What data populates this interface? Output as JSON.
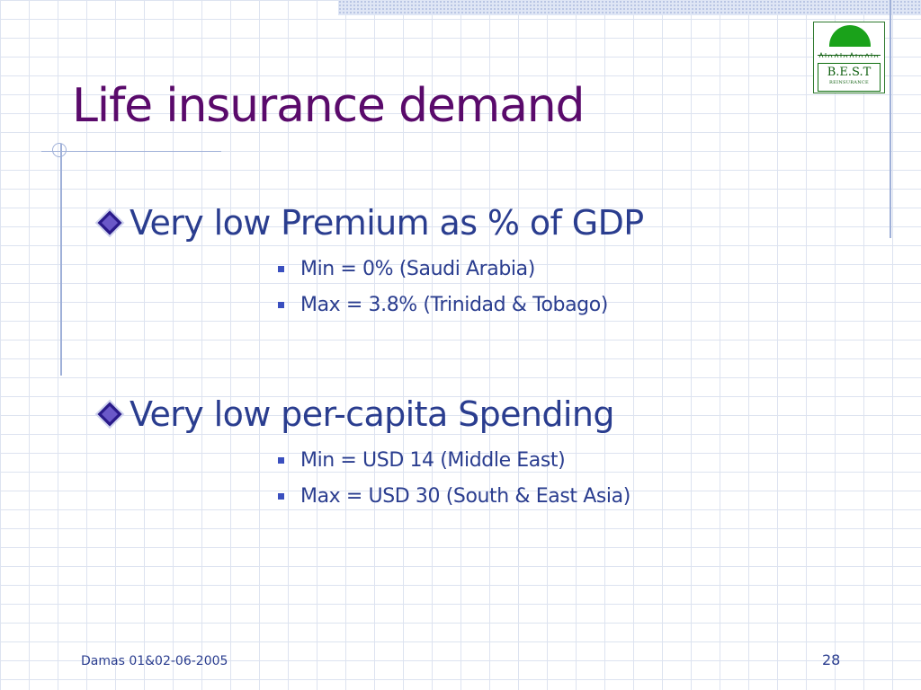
{
  "slide": {
    "title": "Life insurance demand",
    "bullets": [
      {
        "text": "Very low Premium as % of GDP",
        "sub": [
          "Min = 0% (Saudi Arabia)",
          "Max = 3.8% (Trinidad & Tobago)"
        ]
      },
      {
        "text": "Very low per-capita Spending",
        "sub": [
          "Min = USD 14 (Middle East)",
          "Max = USD 30 (South & East Asia)"
        ]
      }
    ]
  },
  "logo": {
    "name": "B.E.S.T",
    "sub": "REINSURANCE"
  },
  "footer": {
    "left": "Damas 01&02-06-2005",
    "page_number": "28"
  },
  "colors": {
    "title": "#5a0a6b",
    "body_text": "#2a3d8f",
    "bullet_square": "#3a4fbf",
    "grid": "#dde3f0",
    "logo_green": "#1aa21a"
  },
  "icons": {
    "level1_bullet": "diamond-bullet-icon",
    "level2_bullet": "square-bullet-icon"
  }
}
